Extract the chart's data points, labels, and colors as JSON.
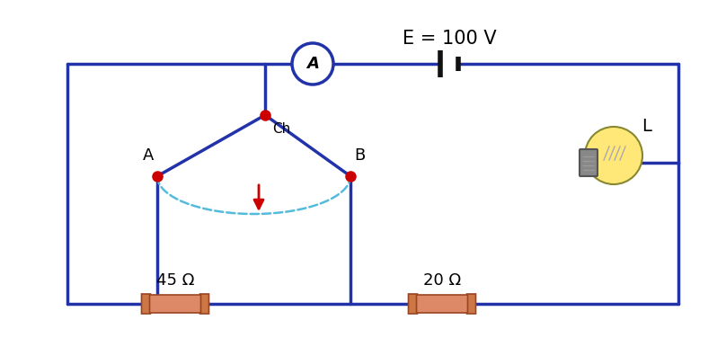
{
  "title": "E = 100 V",
  "wire_color": "#2233AA",
  "wire_lw": 2.5,
  "resistor_color": "#DD8866",
  "resistor_edge_color": "#994422",
  "resistor_label_45": "45 Ω",
  "resistor_label_20": "20 Ω",
  "lamp_label": "L",
  "ammeter_label": "A",
  "point_A_label": "A",
  "point_B_label": "B",
  "switch_label": "Ch",
  "dot_color": "#CC0000",
  "switch_arc_color": "#55BBDD",
  "background": "#FFFFFF",
  "title_fontsize": 15,
  "label_fontsize": 13
}
